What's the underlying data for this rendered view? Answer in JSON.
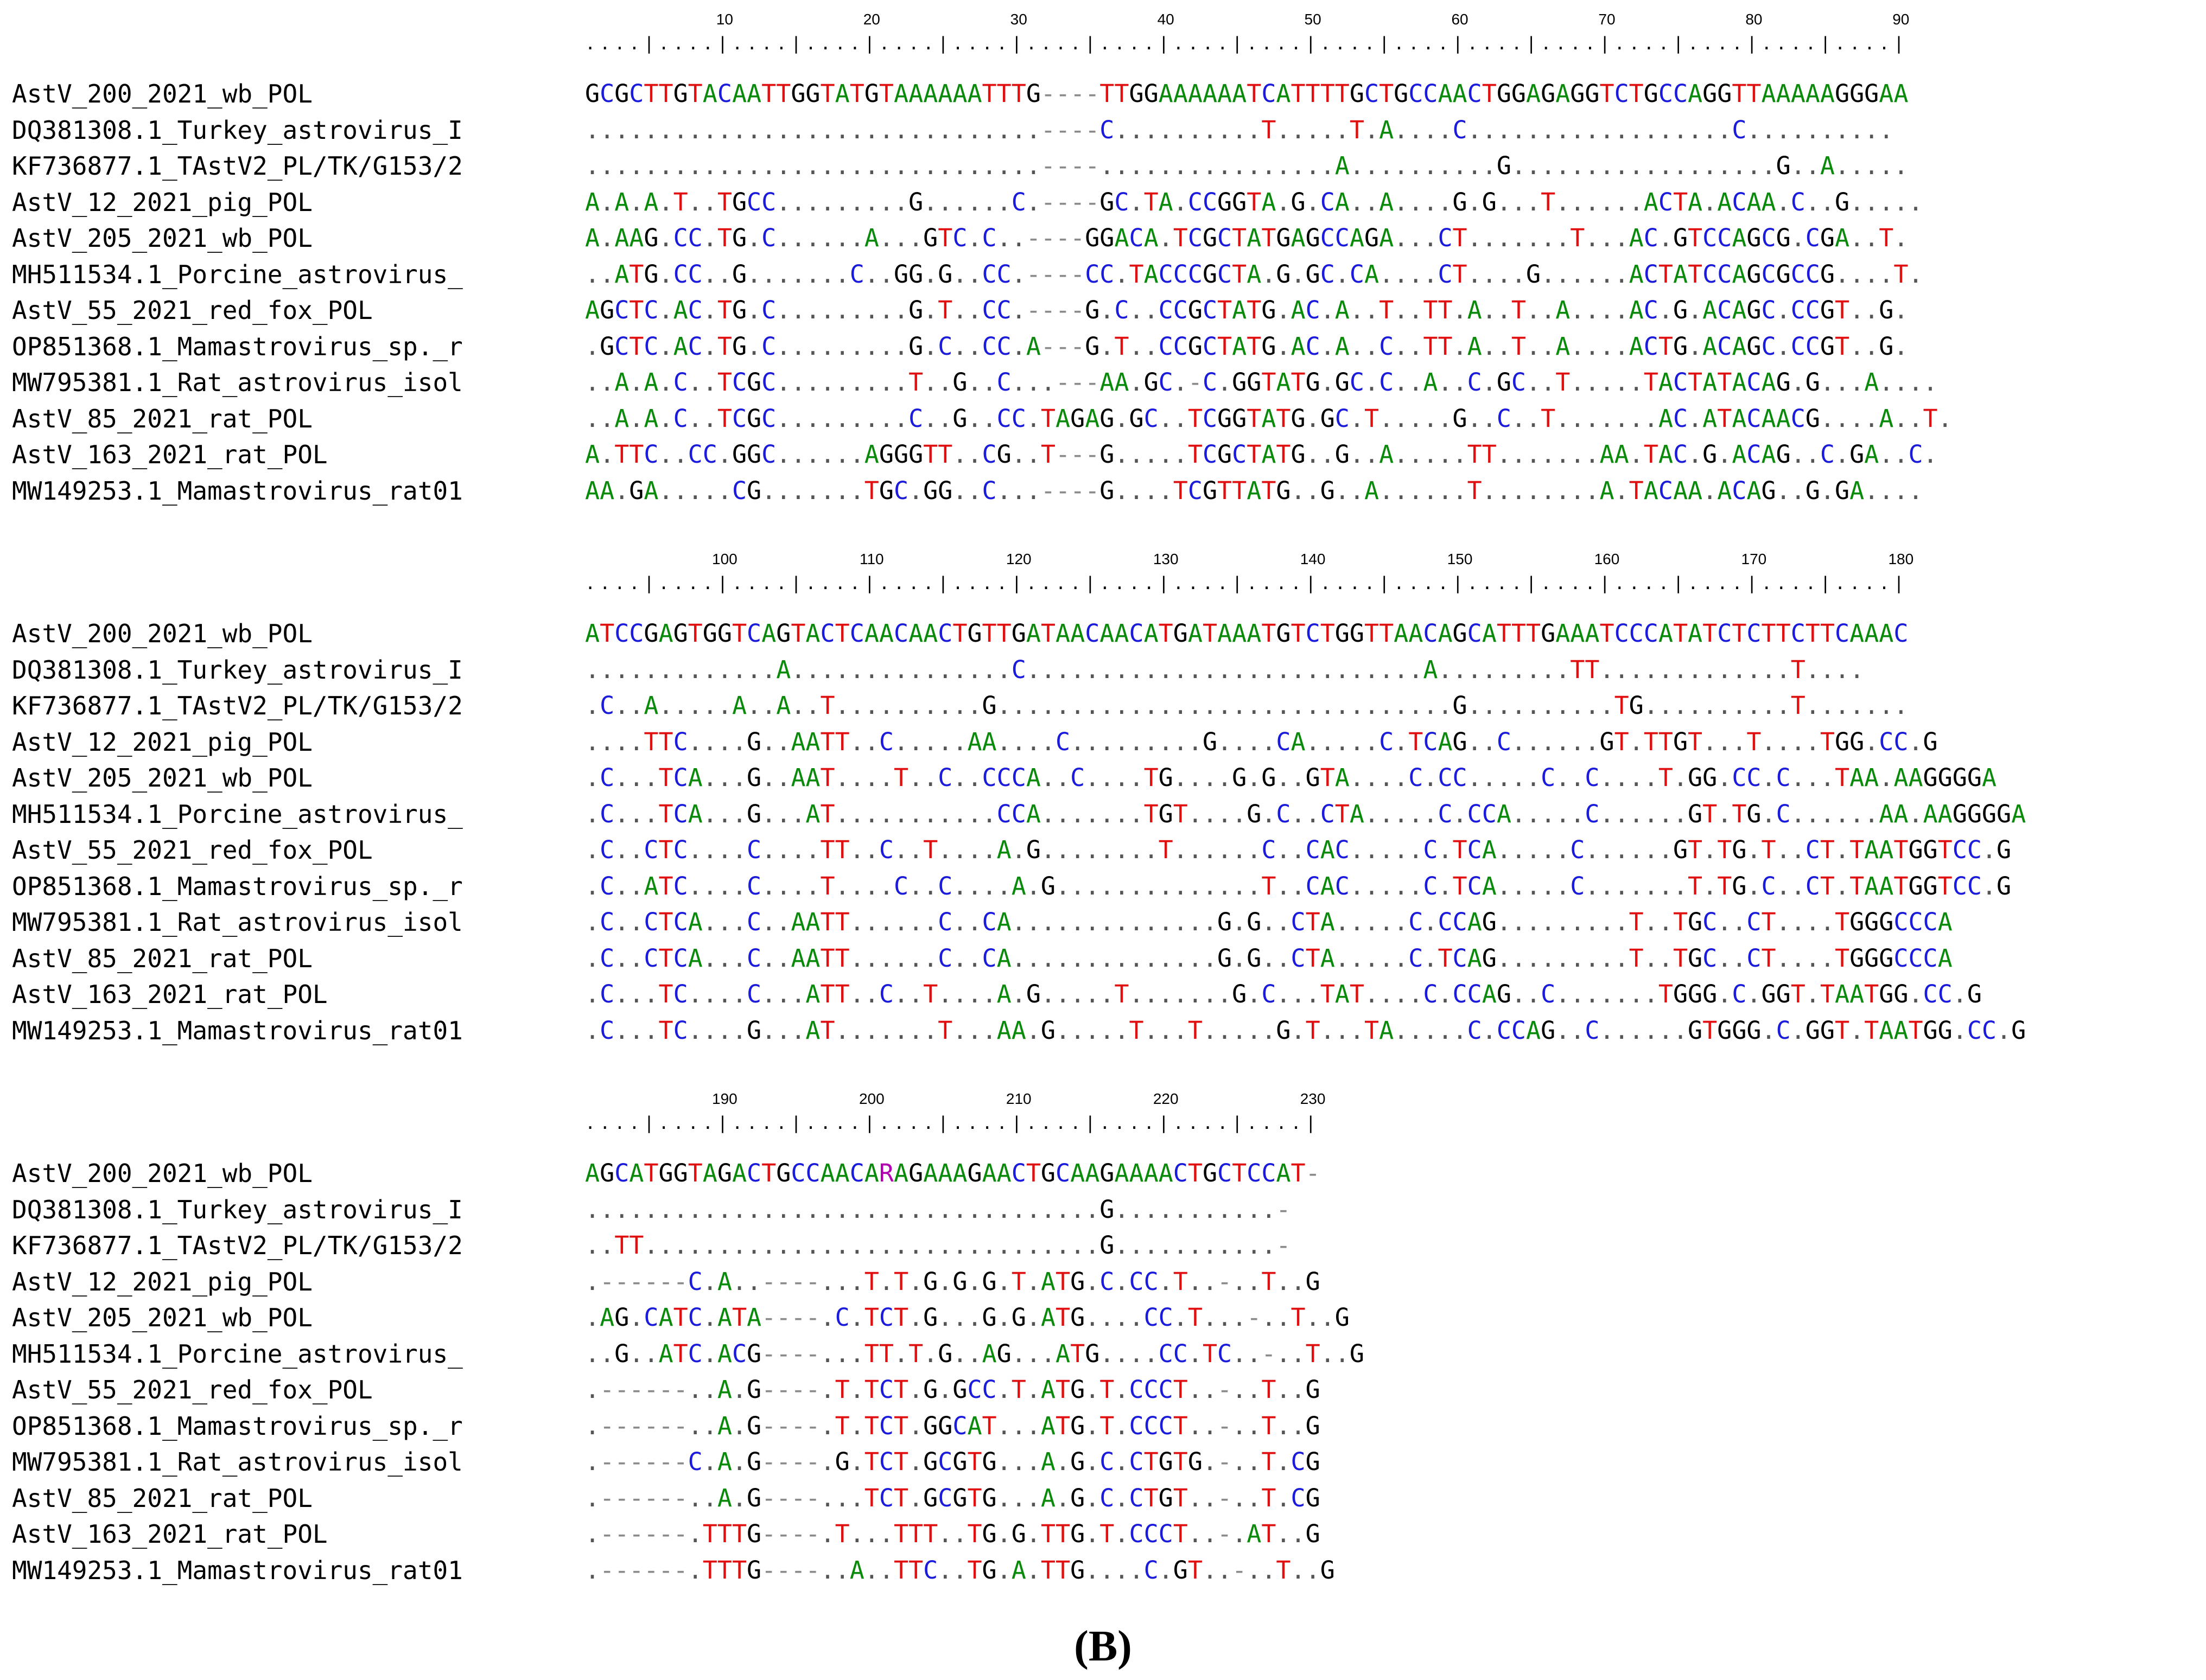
{
  "colors": {
    "A": "#0a8a0a",
    "C": "#1b1bdb",
    "G": "#000000",
    "T": "#e01010",
    "dot": "#555555",
    "gap": "#8a8a8a",
    "other": "#b000b0"
  },
  "panel_label": "(B)",
  "blocks": [
    {
      "ruler_numbers": [
        "10",
        "20",
        "30",
        "40",
        "50",
        "60",
        "70",
        "80",
        "90"
      ],
      "sequences": [
        {
          "name": "AstV_200_2021_wb_POL",
          "seq": "GCGCTTGTACAATTGGTATGTAAAAAATTTG----TTGGAAAAAATCATTTTGCTGCCAACTGGAGAGGTCTGCCAGGTTAAAAAGGGAA"
        },
        {
          "name": "DQ381308.1_Turkey_astrovirus_I",
          "seq": "...............................----C..........T.....T.A....C..................C.........."
        },
        {
          "name": "KF736877.1_TAstV2_PL/TK/G153/2",
          "seq": "...............................----................A..........G..................G..A....."
        },
        {
          "name": "AstV_12_2021_pig_POL",
          "seq": "A.A.A.T..TGCC.........G......C.----GC.TA.CCGGTA.G.CA..A....G.G...T......ACTA.ACAA.C..G....."
        },
        {
          "name": "AstV_205_2021_wb_POL",
          "seq": "A.AAG.CC.TG.C......A...GTC.C..----GGACA.TCGCTATGAGCCAGA...CT.......T...AC.GTCCAGCG.CGA..T."
        },
        {
          "name": "MH511534.1_Porcine_astrovirus_",
          "seq": "..ATG.CC..G.......C..GG.G..CC.----CC.TACCCGCTA.G.GC.CA....CT....G......ACTATCCAGCGCCG....T."
        },
        {
          "name": "AstV_55_2021_red_fox_POL",
          "seq": "AGCTC.AC.TG.C.........G.T..CC.----G.C..CCGCTATG.AC.A..T..TT.A..T..A....AC.G.ACAGC.CCGT..G."
        },
        {
          "name": "OP851368.1_Mamastrovirus_sp._r",
          "seq": ".GCTC.AC.TG.C.........G.C..CC.A---G.T..CCGCTATG.AC.A..C..TT.A..T..A....ACTG.ACAGC.CCGT..G."
        },
        {
          "name": "MW795381.1_Rat_astrovirus_isol",
          "seq": "..A.A.C..TCGC.........T..G..C...---AA.GC.-C.GGTATG.GC.C..A..C.GC..T.....TACTATACAG.G...A...."
        },
        {
          "name": "AstV_85_2021_rat_POL",
          "seq": "..A.A.C..TCGC.........C..G..CC.TAGAG.GC..TCGGTATG.GC.T.....G..C..T.......AC.ATACAACG....A..T."
        },
        {
          "name": "AstV_163_2021_rat_POL",
          "seq": "A.TTC..CC.GGC......AGGGTT..CG..T---G.....TCGCTATG..G..A.....TT.......AA.TAC.G.ACAG..C.GA..C."
        },
        {
          "name": "MW149253.1_Mamastrovirus_rat01",
          "seq": "AA.GA.....CG.......TGC.GG..C...----G....TCGTTATG..G..A......T........A.TACAA.ACAG..G.GA...."
        }
      ]
    },
    {
      "ruler_numbers": [
        "100",
        "110",
        "120",
        "130",
        "140",
        "150",
        "160",
        "170",
        "180"
      ],
      "sequences": [
        {
          "name": "AstV_200_2021_wb_POL",
          "seq": "ATCCGAGTGGTCAGTACTCAACAACTGTTGATAACAACATGATAAATGTCTGGTTAACAGCATTTGAAATCCCATATCTCTTCTTCAAAC"
        },
        {
          "name": "DQ381308.1_Turkey_astrovirus_I",
          "seq": ".............A...............C...........................A.........TT.............T...."
        },
        {
          "name": "KF736877.1_TAstV2_PL/TK/G153/2",
          "seq": ".C..A.....A..A..T..........G...............................G..........TG..........T......."
        },
        {
          "name": "AstV_12_2021_pig_POL",
          "seq": "....TTC....G..AATT..C.....AA....C.........G....CA.....C.TCAG..C......GT.TTGT...T....TGG.CC.G"
        },
        {
          "name": "AstV_205_2021_wb_POL",
          "seq": ".C...TCA...G..AAT....T..C..CCCA..C....TG....G.G..GTA....C.CC.....C..C....T.GG.CC.C...TAA.AAGGGGA"
        },
        {
          "name": "MH511534.1_Porcine_astrovirus_",
          "seq": ".C...TCA...G...AT...........CCA.......TGT....G.C..CTA.....C.CCA.....C......GT.TG.C......AA.AAGGGGA"
        },
        {
          "name": "AstV_55_2021_red_fox_POL",
          "seq": ".C..CTC....C....TT..C..T....A.G........T......C..CAC.....C.TCA.....C......GT.TG.T..CT.TAATGGTCC.G"
        },
        {
          "name": "OP851368.1_Mamastrovirus_sp._r",
          "seq": ".C..ATC....C....T....C..C....A.G..............T..CAC.....C.TCA.....C.......T.TG.C..CT.TAATGGTCC.G"
        },
        {
          "name": "MW795381.1_Rat_astrovirus_isol",
          "seq": ".C..CTCA...C..AATT......C..CA..............G.G..CTA.....C.CCAG.........T..TGC..CT....TGGGCCCA"
        },
        {
          "name": "AstV_85_2021_rat_POL",
          "seq": ".C..CTCA...C..AATT......C..CA..............G.G..CTA.....C.TCAG.........T..TGC..CT....TGGGCCCA"
        },
        {
          "name": "AstV_163_2021_rat_POL",
          "seq": ".C...TC....C...ATT..C..T....A.G.....T.......G.C...TAT....C.CCAG..C.......TGGG.C.GGT.TAATGG.CC.G"
        },
        {
          "name": "MW149253.1_Mamastrovirus_rat01",
          "seq": ".C...TC....G...AT.......T...AA.G.....T...T.....G.T...TA.....C.CCAG..C......GTGGG.C.GGT.TAATGG.CC.G"
        }
      ]
    },
    {
      "ruler_numbers": [
        "190",
        "200",
        "210",
        "220",
        "230"
      ],
      "sequences": [
        {
          "name": "AstV_200_2021_wb_POL",
          "seq": "AGCATGGTAGACTGCCAACARAGAAAGAACTGCAAGAAAACTGCTCCAT-"
        },
        {
          "name": "DQ381308.1_Turkey_astrovirus_I",
          "seq": "...................................G...........-"
        },
        {
          "name": "KF736877.1_TAstV2_PL/TK/G153/2",
          "seq": "..TT...............................G...........-"
        },
        {
          "name": "AstV_12_2021_pig_POL",
          "seq": ".------C.A..----...T.T.G.G.G.T.ATG.C.CC.T..-..T..G"
        },
        {
          "name": "AstV_205_2021_wb_POL",
          "seq": ".AG.CATC.ATA----.C.TCT.G...G.G.ATG....CC.T...-..T..G"
        },
        {
          "name": "MH511534.1_Porcine_astrovirus_",
          "seq": "..G..ATC.ACG----...TT.T.G..AG...ATG....CC.TC..-..T..G"
        },
        {
          "name": "AstV_55_2021_red_fox_POL",
          "seq": ".------..A.G----.T.TCT.G.GCC.T.ATG.T.CCCT..-..T..G"
        },
        {
          "name": "OP851368.1_Mamastrovirus_sp._r",
          "seq": ".------..A.G----.T.TCT.GGCAT...ATG.T.CCCT..-..T..G"
        },
        {
          "name": "MW795381.1_Rat_astrovirus_isol",
          "seq": ".------C.A.G----.G.TCT.GCGTG...A.G.C.CTGTG.-..T.CG"
        },
        {
          "name": "AstV_85_2021_rat_POL",
          "seq": ".------..A.G----...TCT.GCGTG...A.G.C.CTGT..-..T.CG"
        },
        {
          "name": "AstV_163_2021_rat_POL",
          "seq": ".------.TTTG----.T...TTT..TG.G.TTG.T.CCCT..-.AT..G"
        },
        {
          "name": "MW149253.1_Mamastrovirus_rat01",
          "seq": ".------.TTTG----..A..TTC..TG.A.TTG....C.GT..-..T..G"
        }
      ]
    }
  ]
}
